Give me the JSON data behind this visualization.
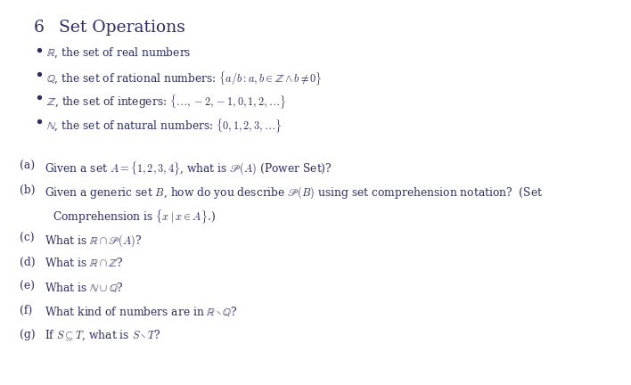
{
  "title_num": "6",
  "title_text": "Set Operations",
  "background_color": "#ffffff",
  "text_color": "#2d2d5e",
  "bullet_color": "#2d2d5e",
  "bullets": [
    {
      "symbol": "$\\mathbb{R}$",
      "text": ", the set of real numbers"
    },
    {
      "symbol": "$\\mathbb{Q}$",
      "text": ", the set of rational numbers: $\\{a/b : a, b \\in \\mathbb{Z} \\wedge b \\neq 0\\}$"
    },
    {
      "symbol": "$\\mathbb{Z}$",
      "text": ", the set of integers: $\\{\\ldots, -2, -1, 0, 1, 2, \\ldots\\}$"
    },
    {
      "symbol": "$\\mathbb{N}$",
      "text": ", the set of natural numbers: $\\{0, 1, 2, 3, \\ldots\\}$"
    }
  ],
  "questions": [
    {
      "label": "(a)",
      "lines": [
        "Given a set $A = \\{1,2,3,4\\}$, what is $\\mathscr{P}(A)$ (Power Set)?"
      ]
    },
    {
      "label": "(b)",
      "lines": [
        "Given a generic set $B$, how do you describe $\\mathscr{P}(B)$ using set comprehension notation?  (Set",
        "Comprehension is $\\{x \\mid x \\in A\\}$.)"
      ]
    },
    {
      "label": "(c)",
      "lines": [
        "What is $\\mathbb{R} \\cap \\mathscr{P}(A)$?"
      ]
    },
    {
      "label": "(d)",
      "lines": [
        "What is $\\mathbb{R} \\cap \\mathbb{Z}$?"
      ]
    },
    {
      "label": "(e)",
      "lines": [
        "What is $\\mathbb{N} \\cup \\mathbb{Q}$?"
      ]
    },
    {
      "label": "(f)",
      "lines": [
        "What kind of numbers are in $\\mathbb{R} \\setminus \\mathbb{Q}$?"
      ]
    },
    {
      "label": "(g)",
      "lines": [
        "If $S \\subseteq T$, what is $S \\setminus T$?"
      ]
    }
  ],
  "figsize": [
    7.08,
    4.32
  ],
  "dpi": 100,
  "title_fs": 13.5,
  "title_num_fs": 13.5,
  "body_fs": 8.8
}
